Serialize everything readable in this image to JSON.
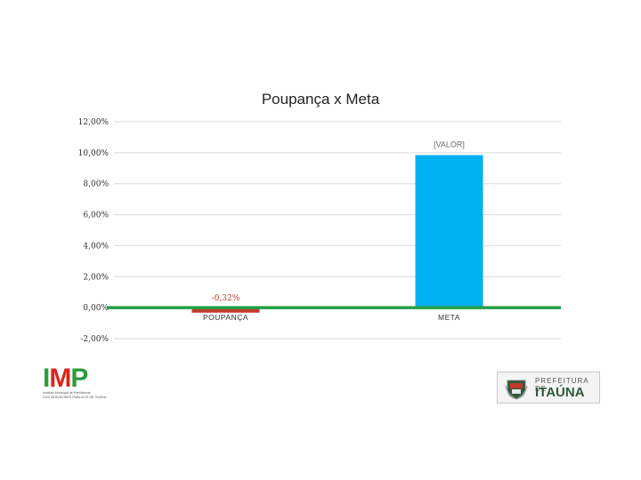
{
  "chart_data": {
    "type": "bar",
    "title": "Poupança x Meta",
    "categories": [
      "POUPANÇA",
      "META"
    ],
    "values": [
      -0.32,
      9.85
    ],
    "data_labels": [
      "-0,32%",
      "[VALOR]"
    ],
    "ylim": [
      -2,
      12
    ],
    "yticks": [
      {
        "value": 12,
        "label": "12,00%"
      },
      {
        "value": 10,
        "label": "10,00%"
      },
      {
        "value": 8,
        "label": "8,00%"
      },
      {
        "value": 6,
        "label": "6,00%"
      },
      {
        "value": 4,
        "label": "4,00%"
      },
      {
        "value": 2,
        "label": "2,00%"
      },
      {
        "value": 0,
        "label": "0,00%"
      },
      {
        "value": -2,
        "label": "-2,00%"
      }
    ],
    "grid": true,
    "colors": {
      "bar_poupanca": "#c0392b",
      "bar_meta": "#00b0f0",
      "zero_line": "#22a046",
      "grid": "#d9d9d9",
      "label_poupanca": "#c0392b",
      "label_meta": "#6b6b6b"
    }
  },
  "logos": {
    "imp": {
      "letters": [
        "I",
        "M",
        "P"
      ],
      "subtitle_1": "Instituto Municipal de Previdência",
      "subtitle_2": "DOS SERVIDORES PÚBLICOS DE ITAÚNA"
    },
    "prefeitura": {
      "line1": "PREFEITURA DE",
      "line2": "ITAÚNA"
    }
  }
}
